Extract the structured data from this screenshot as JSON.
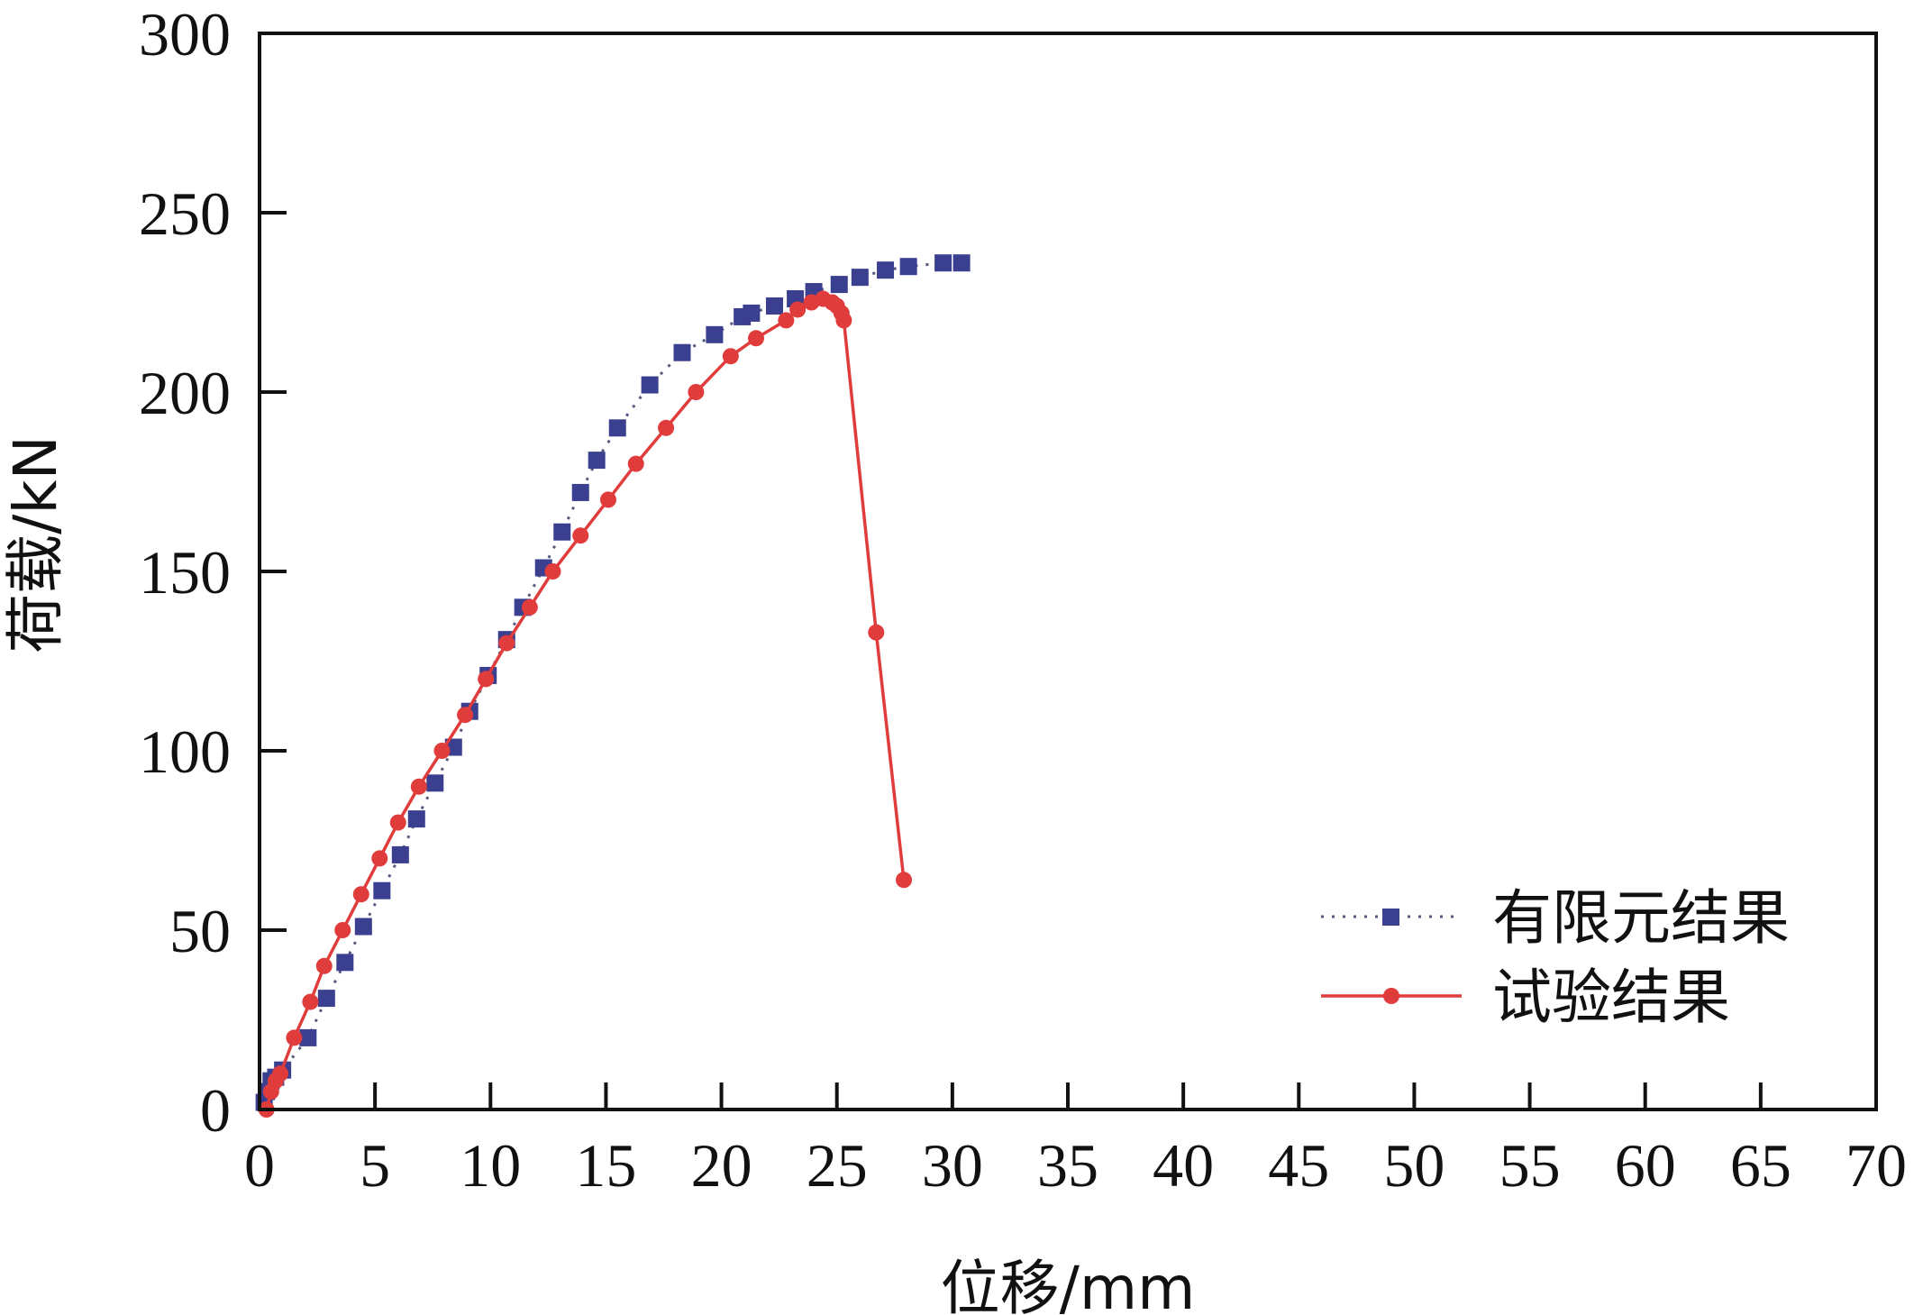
{
  "chart_data": {
    "type": "line",
    "title": "",
    "xlabel": "位移/mm",
    "ylabel": "荷载/kN",
    "xlim": [
      0,
      70
    ],
    "ylim": [
      0,
      300
    ],
    "xticks": [
      0,
      5,
      10,
      15,
      20,
      25,
      30,
      35,
      40,
      45,
      50,
      55,
      60,
      65,
      70
    ],
    "yticks": [
      0,
      50,
      100,
      150,
      200,
      250,
      300
    ],
    "grid": false,
    "legend_position": "lower-right",
    "series": [
      {
        "name": "有限元结果",
        "style": "dotted-square",
        "color": "#3b3f8f",
        "x": [
          0.2,
          0.3,
          0.5,
          0.7,
          1.0,
          2.1,
          2.9,
          3.7,
          4.5,
          5.3,
          6.1,
          6.8,
          7.6,
          8.4,
          9.1,
          9.9,
          10.7,
          11.4,
          12.3,
          13.1,
          13.9,
          14.6,
          15.5,
          16.9,
          18.3,
          19.7,
          20.9,
          21.3,
          22.3,
          23.2,
          24.0,
          25.1,
          26.0,
          27.1,
          28.1,
          29.6,
          30.4
        ],
        "y": [
          2,
          5,
          8,
          9,
          11,
          20,
          31,
          41,
          51,
          61,
          71,
          81,
          91,
          101,
          111,
          121,
          131,
          140,
          151,
          161,
          172,
          181,
          190,
          202,
          211,
          216,
          221,
          222,
          224,
          226,
          228,
          230,
          232,
          234,
          235,
          236,
          236
        ]
      },
      {
        "name": "试验结果",
        "style": "solid-circle",
        "color": "#e03c3c",
        "x": [
          0.3,
          0.5,
          0.7,
          0.9,
          1.5,
          2.2,
          2.8,
          3.6,
          4.4,
          5.2,
          6.0,
          6.9,
          7.9,
          8.9,
          9.8,
          10.7,
          11.7,
          12.7,
          13.9,
          15.1,
          16.3,
          17.6,
          18.9,
          20.4,
          21.5,
          22.8,
          23.3,
          23.9,
          24.4,
          24.8,
          25.0,
          25.2,
          25.3,
          26.7,
          27.9
        ],
        "y": [
          0,
          5,
          8,
          10,
          20,
          30,
          40,
          50,
          60,
          70,
          80,
          90,
          100,
          110,
          120,
          130,
          140,
          150,
          160,
          170,
          180,
          190,
          200,
          210,
          215,
          220,
          223,
          225,
          226,
          225,
          224,
          222,
          220,
          133,
          64
        ]
      }
    ]
  }
}
